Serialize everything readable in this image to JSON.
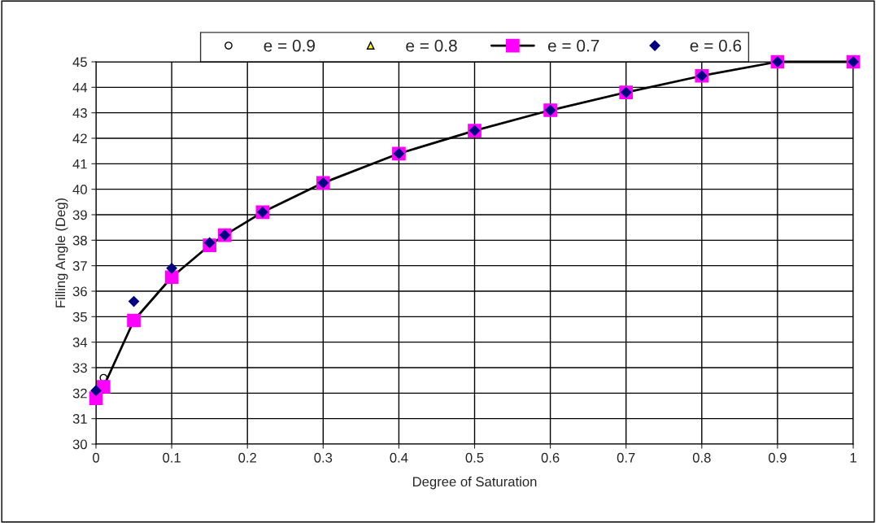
{
  "chart_data": {
    "type": "line",
    "xlabel": "Degree of Saturation",
    "ylabel": "Filling Angle (Deg)",
    "x": [
      0,
      0.01,
      0.05,
      0.1,
      0.15,
      0.17,
      0.22,
      0.3,
      0.4,
      0.5,
      0.6,
      0.7,
      0.8,
      0.9,
      1
    ],
    "series": [
      {
        "name": "e = 0.9",
        "type": "scatter",
        "marker": "circle",
        "color": "#ffffff",
        "values": [
          null,
          32.6,
          null,
          null,
          null,
          null,
          null,
          null,
          null,
          null,
          null,
          null,
          null,
          null,
          null
        ]
      },
      {
        "name": "e = 0.8",
        "type": "scatter",
        "marker": "triangle",
        "color": "#ffff00",
        "values": [
          null,
          null,
          null,
          null,
          null,
          null,
          null,
          null,
          null,
          null,
          null,
          null,
          null,
          null,
          null
        ]
      },
      {
        "name": "e = 0.7",
        "marker": "square",
        "color": "#ff00ff",
        "values": [
          31.8,
          32.25,
          34.85,
          36.55,
          37.8,
          38.2,
          39.1,
          40.25,
          41.4,
          42.3,
          43.1,
          43.8,
          44.45,
          45,
          45
        ]
      },
      {
        "name": "e = 0.6",
        "type": "scatter",
        "marker": "diamond",
        "color": "#000080",
        "values": [
          32.1,
          null,
          35.6,
          36.9,
          37.9,
          38.2,
          39.1,
          40.25,
          41.4,
          42.3,
          43.1,
          43.8,
          44.45,
          45,
          45
        ]
      }
    ],
    "xlim": [
      0,
      1
    ],
    "xticks": [
      0,
      0.1,
      0.2,
      0.3,
      0.4,
      0.5,
      0.6,
      0.7,
      0.8,
      0.9,
      1
    ],
    "ylim": [
      30,
      45
    ],
    "yticks": [
      30,
      31,
      32,
      33,
      34,
      35,
      36,
      37,
      38,
      39,
      40,
      41,
      42,
      43,
      44,
      45
    ],
    "grid": true,
    "legend": "top"
  }
}
